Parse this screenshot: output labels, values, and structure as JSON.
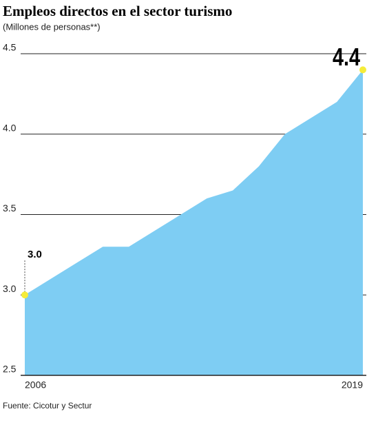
{
  "chart_data": {
    "type": "area",
    "title": "Empleos directos en el sector turismo",
    "subtitle": "(Millones de personas**)",
    "source": "Fuente: Cicotur y Sectur",
    "categories": [
      "2006",
      null,
      null,
      null,
      null,
      null,
      null,
      null,
      null,
      null,
      null,
      null,
      null,
      "2019"
    ],
    "values": [
      3.0,
      3.1,
      3.2,
      3.3,
      3.3,
      3.4,
      3.5,
      3.6,
      3.65,
      3.8,
      4.0,
      4.1,
      4.2,
      4.4
    ],
    "value_labels": [
      "3.0",
      null,
      null,
      null,
      null,
      null,
      null,
      null,
      null,
      null,
      null,
      null,
      null,
      "4.4"
    ],
    "color": "#7ecdf3",
    "marker_color": "#f5ec3a",
    "ylim": [
      2.5,
      4.5
    ],
    "yticks": [
      {
        "value": 2.5,
        "label": "2.5"
      },
      {
        "value": 3,
        "label": "3.0"
      },
      3.5,
      {
        "value": 4,
        "label": "4.0"
      },
      4.5
    ],
    "grid": true
  }
}
